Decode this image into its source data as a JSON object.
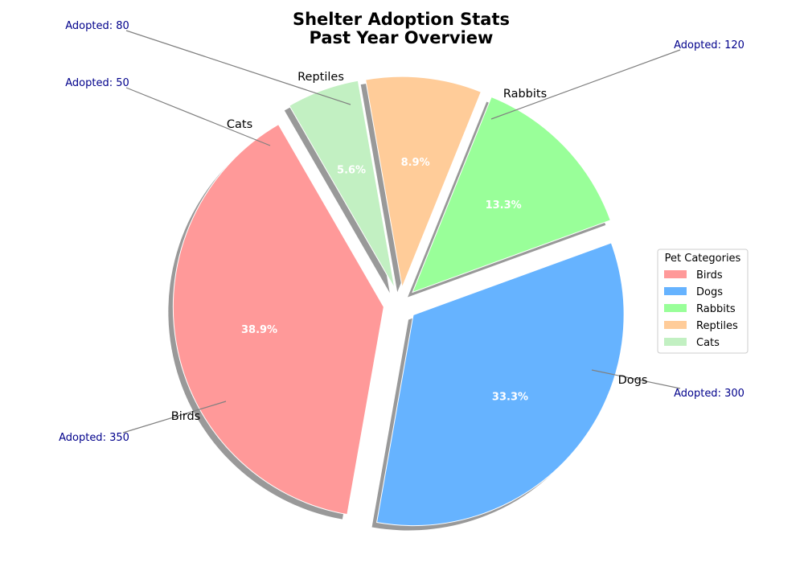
{
  "chart_data": {
    "type": "pie",
    "title_lines": [
      "Shelter Adoption Stats",
      "Past Year Overview"
    ],
    "slices": [
      {
        "label": "Birds",
        "value": 350,
        "percent_label": "38.9%",
        "annotation": "Adopted: 350",
        "color": "#ff9999"
      },
      {
        "label": "Dogs",
        "value": 300,
        "percent_label": "33.3%",
        "annotation": "Adopted: 300",
        "color": "#66b3ff"
      },
      {
        "label": "Rabbits",
        "value": 120,
        "percent_label": "13.3%",
        "annotation": "Adopted: 120",
        "color": "#99ff99"
      },
      {
        "label": "Reptiles",
        "value": 80,
        "percent_label": "8.9%",
        "annotation": "Adopted: 80",
        "color": "#ffcc99"
      },
      {
        "label": "Cats",
        "value": 50,
        "percent_label": "5.6%",
        "annotation": "Adopted: 50",
        "color": "#c2f0c2"
      }
    ],
    "legend": {
      "title": "Pet Categories",
      "position": "center-right"
    },
    "shadow": true,
    "exploded": true,
    "annotation_color": "#00008b"
  }
}
